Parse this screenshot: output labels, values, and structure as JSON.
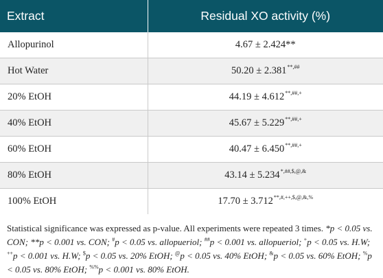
{
  "colors": {
    "header_bg": "#0b5566",
    "stripe_bg": "#f0f0f0",
    "rule": "#c9c9c9"
  },
  "table": {
    "headers": [
      "Extract",
      "Residual XO activity (%)"
    ],
    "rows": [
      {
        "extract": "Allopurinol",
        "value": "4.67 ± 2.424**",
        "sig": ""
      },
      {
        "extract": "Hot Water",
        "value": "50.20 ± 2.381",
        "sig": "**,##"
      },
      {
        "extract": "20% EtOH",
        "value": "44.19 ± 4.612",
        "sig": "**,##,+"
      },
      {
        "extract": "40% EtOH",
        "value": "45.67 ± 5.229",
        "sig": "**,##,+"
      },
      {
        "extract": "60% EtOH",
        "value": "40.47 ± 6.450",
        "sig": "**,##,+"
      },
      {
        "extract": "80% EtOH",
        "value": "43.14 ± 5.234",
        "sig": "*,##,$,@,&"
      },
      {
        "extract": "100% EtOH",
        "value": "17.70 ± 3.712",
        "sig": "**,#,++,$,@,&,%"
      }
    ]
  },
  "footnote": {
    "lead": "Statistical significance was expressed as p-value. All experiments were repeated 3 times.",
    "items": [
      {
        "sym": "",
        "text": "*p < 0.05 vs. CON;"
      },
      {
        "sym": "",
        "text": "**p < 0.001 vs. CON;"
      },
      {
        "sym": "#",
        "text": "p < 0.05 vs. allopueriol;"
      },
      {
        "sym": "##",
        "text": "p < 0.001 vs. allopueriol;"
      },
      {
        "sym": "+",
        "text": "p < 0.05 vs. H.W;"
      },
      {
        "sym": "++",
        "text": "p < 0.001 vs. H.W;"
      },
      {
        "sym": "$",
        "text": "p < 0.05 vs. 20% EtOH;"
      },
      {
        "sym": "@",
        "text": "p < 0.05 vs. 40% EtOH;"
      },
      {
        "sym": "&",
        "text": "p < 0.05 vs. 60% EtOH;"
      },
      {
        "sym": "%",
        "text": "p < 0.05 vs. 80% EtOH;"
      },
      {
        "sym": "%%",
        "text": "p < 0.001 vs. 80% EtOH."
      }
    ]
  }
}
